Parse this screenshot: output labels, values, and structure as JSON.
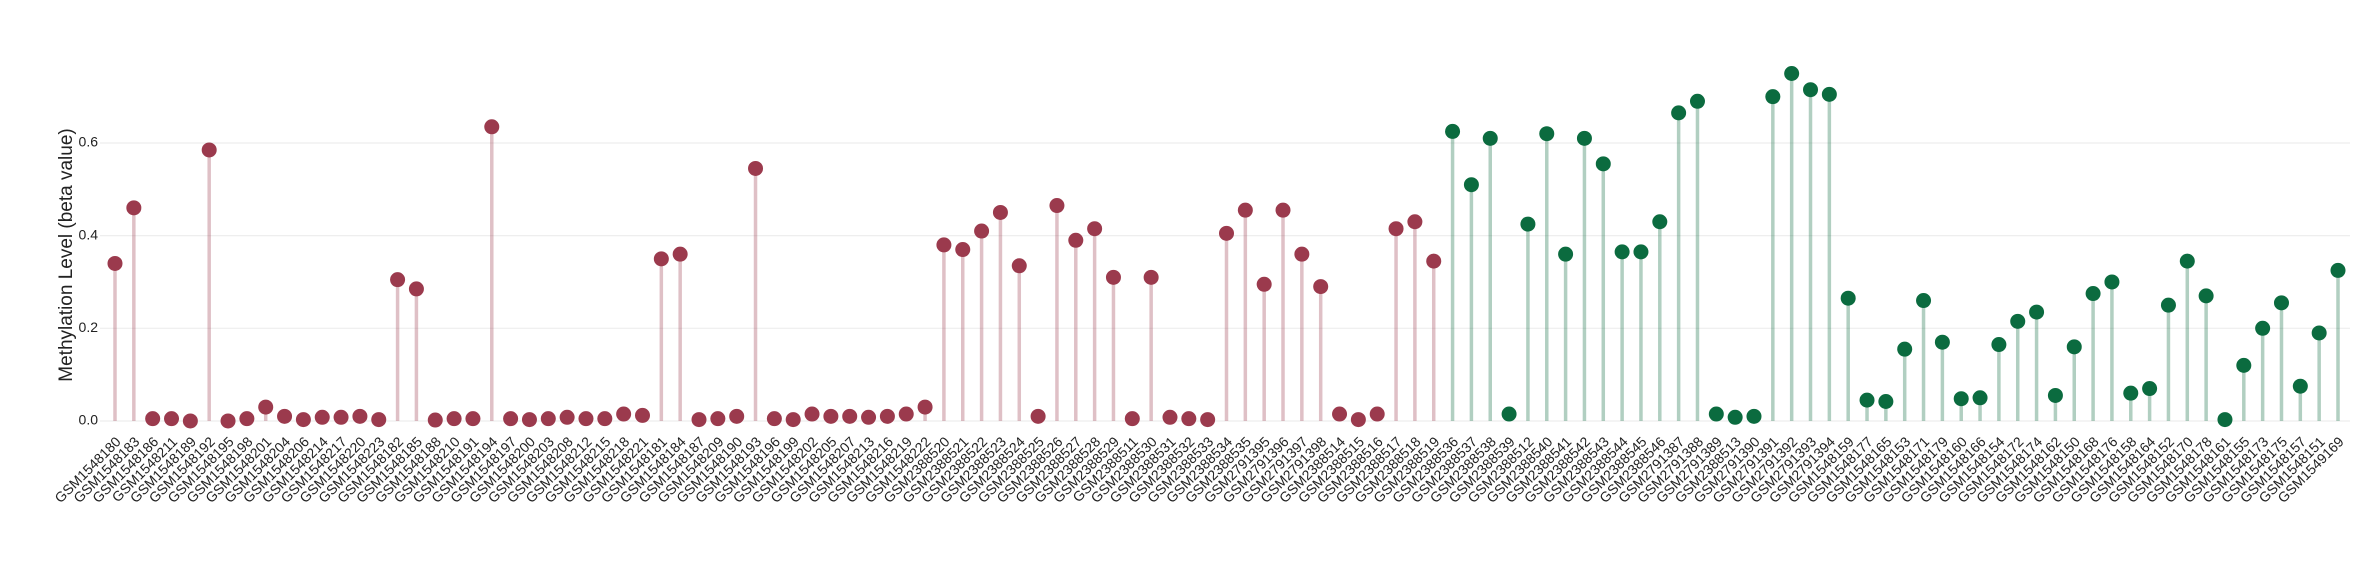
{
  "chart_data": {
    "type": "lollipop",
    "y_label": "Methylation Level (beta value)",
    "ylim": [
      -0.01,
      0.78
    ],
    "yticks": [
      {
        "value": 0,
        "label": "0.0"
      },
      0.2,
      0.4,
      0.6
    ],
    "grid": true,
    "categories": [
      "GSM1548180",
      "GSM1548183",
      "GSM1548186",
      "GSM1548211",
      "GSM1548189",
      "GSM1548192",
      "GSM1548195",
      "GSM1548198",
      "GSM1548201",
      "GSM1548204",
      "GSM1548206",
      "GSM1548214",
      "GSM1548217",
      "GSM1548220",
      "GSM1548223",
      "GSM1548182",
      "GSM1548185",
      "GSM1548188",
      "GSM1548210",
      "GSM1548191",
      "GSM1548194",
      "GSM1548197",
      "GSM1548200",
      "GSM1548203",
      "GSM1548208",
      "GSM1548212",
      "GSM1548215",
      "GSM1548218",
      "GSM1548221",
      "GSM1548181",
      "GSM1548184",
      "GSM1548187",
      "GSM1548209",
      "GSM1548190",
      "GSM1548193",
      "GSM1548196",
      "GSM1548199",
      "GSM1548202",
      "GSM1548205",
      "GSM1548207",
      "GSM1548213",
      "GSM1548216",
      "GSM1548219",
      "GSM1548222",
      "GSM2388520",
      "GSM2388521",
      "GSM2388522",
      "GSM2388523",
      "GSM2388524",
      "GSM2388525",
      "GSM2388526",
      "GSM2388527",
      "GSM2388528",
      "GSM2388529",
      "GSM2388511",
      "GSM2388530",
      "GSM2388531",
      "GSM2388532",
      "GSM2388533",
      "GSM2388534",
      "GSM2388535",
      "GSM2791395",
      "GSM2791396",
      "GSM2791397",
      "GSM2791398",
      "GSM2388514",
      "GSM2388515",
      "GSM2388516",
      "GSM2388517",
      "GSM2388518",
      "GSM2388519",
      "GSM2388536",
      "GSM2388537",
      "GSM2388538",
      "GSM2388539",
      "GSM2388512",
      "GSM2388540",
      "GSM2388541",
      "GSM2388542",
      "GSM2388543",
      "GSM2388544",
      "GSM2388545",
      "GSM2388546",
      "GSM2791387",
      "GSM2791388",
      "GSM2791389",
      "GSM2388513",
      "GSM2791390",
      "GSM2791391",
      "GSM2791392",
      "GSM2791393",
      "GSM2791394",
      "GSM1548159",
      "GSM1548177",
      "GSM1548165",
      "GSM1548153",
      "GSM1548171",
      "GSM1548179",
      "GSM1548160",
      "GSM1548166",
      "GSM1548154",
      "GSM1548172",
      "GSM1548174",
      "GSM1548162",
      "GSM1548150",
      "GSM1548168",
      "GSM1548176",
      "GSM1548158",
      "GSM1548164",
      "GSM1548152",
      "GSM1548170",
      "GSM1548178",
      "GSM1548161",
      "GSM1548155",
      "GSM1548173",
      "GSM1548175",
      "GSM1548157",
      "GSM1548151",
      "GSM1549169"
    ],
    "series": [
      {
        "color": "#9b3a4d",
        "values": [
          0.34,
          0.46,
          0.005,
          0.005,
          0.0,
          0.585,
          0.0,
          0.005,
          0.03,
          0.01,
          0.003,
          0.008,
          0.008,
          0.01,
          0.003,
          0.305,
          0.285,
          0.002,
          0.005,
          0.005,
          0.635,
          0.005,
          0.003,
          0.005,
          0.008,
          0.005,
          0.005,
          0.015,
          0.012,
          0.35,
          0.36,
          0.003,
          0.005,
          0.01,
          0.545,
          0.005,
          0.003,
          0.015,
          0.01,
          0.01,
          0.008,
          0.01,
          0.015,
          0.03,
          0.38,
          0.37,
          0.41,
          0.45,
          0.335,
          0.01,
          0.465,
          0.39,
          0.415,
          0.31,
          0.005,
          0.31,
          0.008,
          0.005,
          0.003,
          0.405,
          0.455,
          0.295,
          0.455,
          0.36,
          0.29,
          0.015,
          0.003,
          0.015,
          0.415,
          0.43,
          0.345,
          null,
          null,
          null,
          null,
          null,
          null,
          null,
          null,
          null,
          null,
          null,
          null,
          null,
          null,
          null,
          null,
          null,
          null,
          null,
          null,
          null,
          null,
          null,
          null,
          null,
          null,
          null,
          null,
          null,
          null,
          null,
          null,
          null,
          null,
          null,
          null,
          null,
          null,
          null,
          null,
          null,
          null,
          null,
          null,
          null,
          null,
          null,
          null
        ]
      },
      {
        "color": "#0b6b3f",
        "values": [
          null,
          null,
          null,
          null,
          null,
          null,
          null,
          null,
          null,
          null,
          null,
          null,
          null,
          null,
          null,
          null,
          null,
          null,
          null,
          null,
          null,
          null,
          null,
          null,
          null,
          null,
          null,
          null,
          null,
          null,
          null,
          null,
          null,
          null,
          null,
          null,
          null,
          null,
          null,
          null,
          null,
          null,
          null,
          null,
          null,
          null,
          null,
          null,
          null,
          null,
          null,
          null,
          null,
          null,
          null,
          null,
          null,
          null,
          null,
          null,
          null,
          null,
          null,
          null,
          null,
          null,
          null,
          null,
          null,
          null,
          null,
          0.625,
          0.51,
          0.61,
          0.015,
          0.425,
          0.62,
          0.36,
          0.61,
          0.555,
          0.365,
          0.365,
          0.43,
          0.665,
          0.69,
          0.015,
          0.008,
          0.01,
          0.7,
          0.75,
          0.715,
          0.705,
          0.265,
          0.045,
          0.042,
          0.155,
          0.26,
          0.17,
          0.048,
          0.05,
          0.165,
          0.215,
          0.235,
          0.055,
          0.16,
          0.275,
          0.3,
          0.06,
          0.07,
          0.25,
          0.345,
          0.27,
          0.003,
          0.12,
          0.2,
          0.255,
          0.075,
          0.19,
          0.325
        ]
      }
    ]
  }
}
